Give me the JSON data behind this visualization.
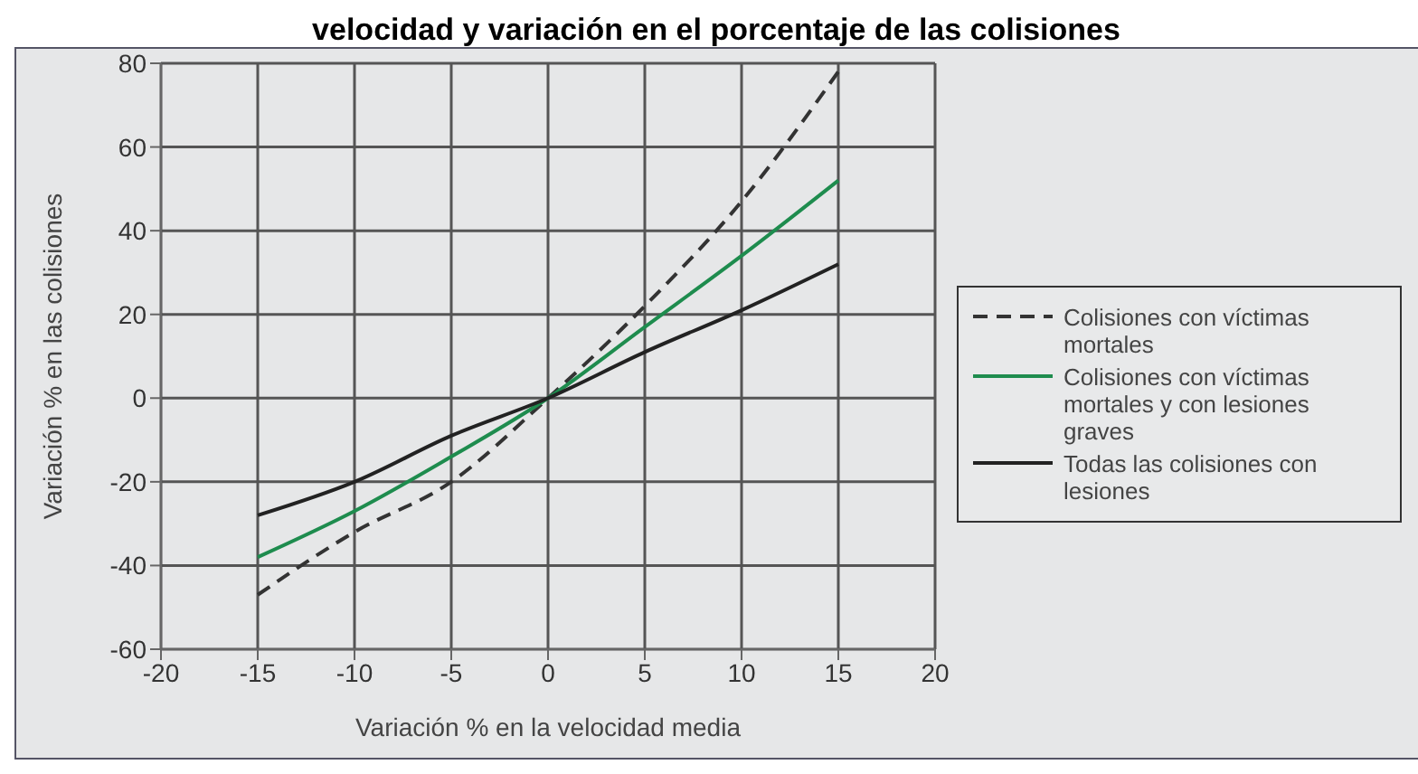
{
  "chart_data": {
    "type": "line",
    "title": "velocidad y variación en el porcentaje de las colisiones",
    "xlabel": "Variación % en la velocidad media",
    "ylabel": "Variación % en las colisiones",
    "x": [
      -15,
      -10,
      -5,
      0,
      5,
      10,
      15
    ],
    "series": [
      {
        "name": "Colisiones con víctimas mortales",
        "color": "#333333",
        "line_style": "dashed",
        "values": [
          -47,
          -32,
          -20,
          0,
          22,
          47,
          78
        ]
      },
      {
        "name": "Colisiones con víctimas mortales y con lesiones graves",
        "color": "#1e8c4e",
        "line_style": "solid",
        "values": [
          -38,
          -27,
          -14,
          0,
          17,
          34,
          52
        ]
      },
      {
        "name": "Todas las colisiones con lesiones",
        "color": "#222222",
        "line_style": "solid",
        "values": [
          -28,
          -20,
          -9,
          0,
          11,
          21,
          32
        ]
      }
    ],
    "xlim": [
      -20,
      20
    ],
    "xticks": [
      -20,
      -15,
      -10,
      -5,
      0,
      5,
      10,
      15,
      20
    ],
    "ylim": [
      -60,
      80
    ],
    "yticks": [
      -60,
      -40,
      -20,
      0,
      20,
      40,
      60,
      80
    ],
    "grid": true,
    "legend": "right",
    "marker": "none"
  }
}
